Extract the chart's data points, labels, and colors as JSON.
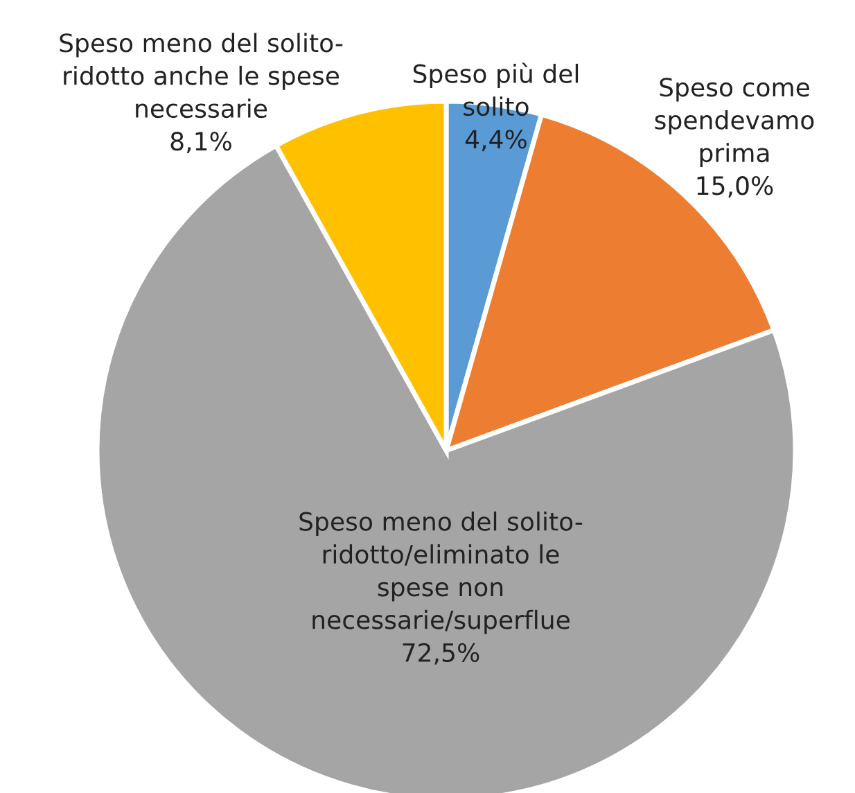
{
  "chart_data": {
    "type": "pie",
    "categories": [
      "Speso più del\nsolito",
      "Speso come\nspendevamo\nprima",
      "Speso meno del solito-\nridotto/eliminato le\nspese non\nnecessarie/superflue",
      "Speso meno del solito-\nridotto anche le spese\nnecessarie"
    ],
    "values": [
      4.4,
      15.0,
      72.5,
      8.1
    ],
    "value_labels": [
      "4,4%",
      "15,0%",
      "72,5%",
      "8,1%"
    ],
    "colors": [
      "#5b9bd5",
      "#ed7d31",
      "#a5a5a5",
      "#ffc000"
    ]
  }
}
